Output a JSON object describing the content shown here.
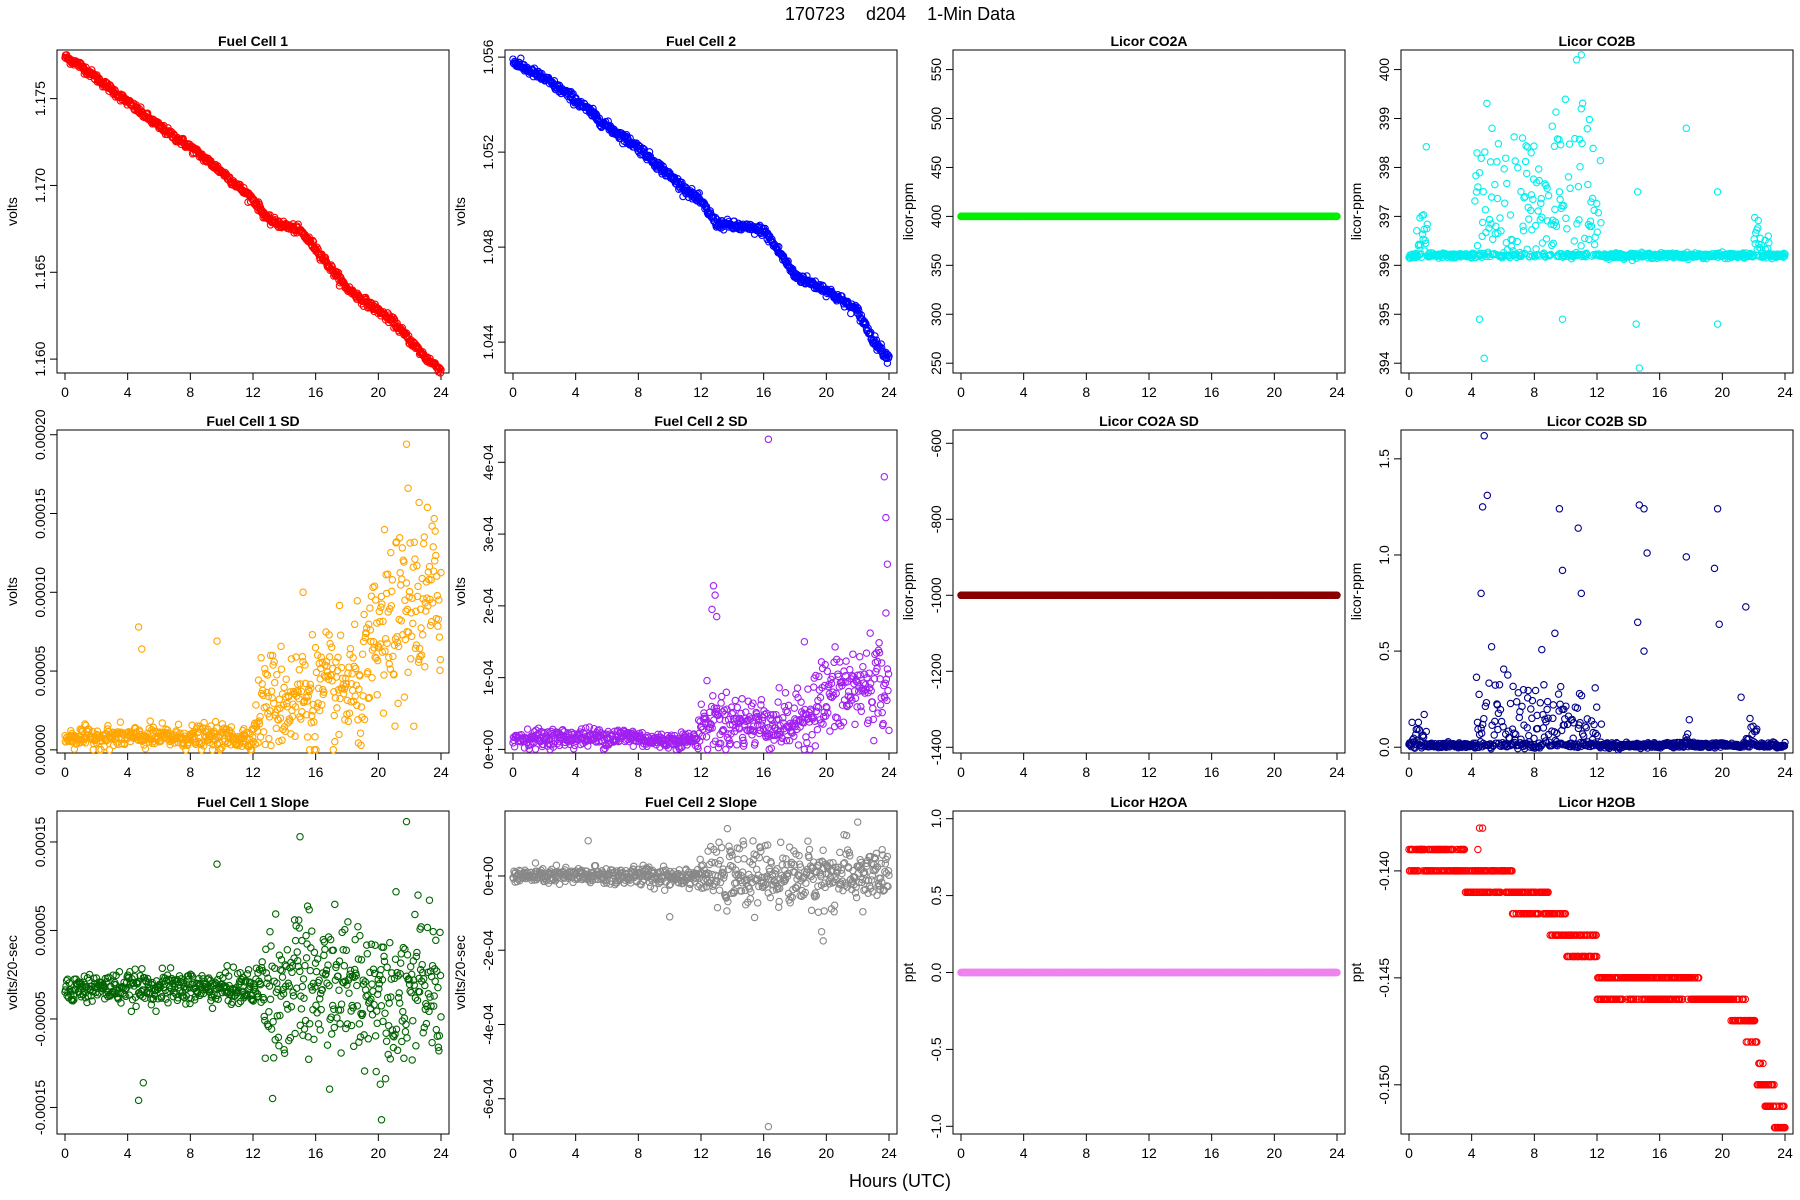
{
  "header": {
    "date": "170723",
    "station": "d204",
    "resolution": "1-Min Data"
  },
  "x_axis_label": "Hours (UTC)",
  "chart_data": [
    {
      "type": "scatter",
      "title": "Fuel Cell 1",
      "ylabel": "volts",
      "color": "#ff0000",
      "xlim": [
        0,
        24
      ],
      "ylim": [
        1.1592,
        1.1778
      ],
      "xticks": [
        0,
        4,
        8,
        12,
        16,
        20,
        24
      ],
      "xtick_labels": [
        "0",
        "4",
        "8",
        "12",
        "16",
        "20",
        "24"
      ],
      "yticks": [
        1.16,
        1.165,
        1.17,
        1.175
      ],
      "ytick_labels": [
        "1.160",
        "1.165",
        "1.170",
        "1.175"
      ],
      "series_shape": "trend",
      "noise": 0.00012,
      "trend": [
        [
          0,
          1.1774
        ],
        [
          1,
          1.1769
        ],
        [
          2,
          1.1762
        ],
        [
          3,
          1.1755
        ],
        [
          4,
          1.1748
        ],
        [
          6,
          1.1734
        ],
        [
          8,
          1.1722
        ],
        [
          10,
          1.1708
        ],
        [
          12,
          1.1692
        ],
        [
          13,
          1.168
        ],
        [
          14,
          1.1677
        ],
        [
          15,
          1.1674
        ],
        [
          16,
          1.1664
        ],
        [
          17,
          1.1652
        ],
        [
          18,
          1.1641
        ],
        [
          19,
          1.1634
        ],
        [
          20,
          1.1628
        ],
        [
          21,
          1.1621
        ],
        [
          22,
          1.1611
        ],
        [
          23,
          1.1601
        ],
        [
          24,
          1.1594
        ]
      ]
    },
    {
      "type": "scatter",
      "title": "Fuel Cell 2",
      "ylabel": "volts",
      "color": "#0000ff",
      "xlim": [
        0,
        24
      ],
      "ylim": [
        1.0427,
        1.0563
      ],
      "xticks": [
        0,
        4,
        8,
        12,
        16,
        20,
        24
      ],
      "xtick_labels": [
        "0",
        "4",
        "8",
        "12",
        "16",
        "20",
        "24"
      ],
      "yticks": [
        1.044,
        1.048,
        1.052,
        1.056
      ],
      "ytick_labels": [
        "1.044",
        "1.048",
        "1.052",
        "1.056"
      ],
      "series_shape": "trend",
      "noise": 0.0001,
      "trend": [
        [
          0,
          1.0558
        ],
        [
          2,
          1.0551
        ],
        [
          4,
          1.0542
        ],
        [
          6,
          1.0531
        ],
        [
          8,
          1.0522
        ],
        [
          10,
          1.051
        ],
        [
          12,
          1.0499
        ],
        [
          13,
          1.049
        ],
        [
          14,
          1.0489
        ],
        [
          16,
          1.0487
        ],
        [
          17,
          1.0478
        ],
        [
          18,
          1.0468
        ],
        [
          20,
          1.0462
        ],
        [
          22,
          1.0453
        ],
        [
          23,
          1.0441
        ],
        [
          24,
          1.0433
        ]
      ]
    },
    {
      "type": "scatter",
      "title": "Licor CO2A",
      "ylabel": "licor-ppm",
      "color": "#00ee00",
      "xlim": [
        0,
        24
      ],
      "ylim": [
        240,
        570
      ],
      "xticks": [
        0,
        4,
        8,
        12,
        16,
        20,
        24
      ],
      "xtick_labels": [
        "0",
        "4",
        "8",
        "12",
        "16",
        "20",
        "24"
      ],
      "yticks": [
        250,
        300,
        350,
        400,
        450,
        500,
        550
      ],
      "ytick_labels": [
        "250",
        "300",
        "350",
        "400",
        "450",
        "500",
        "550"
      ],
      "series_shape": "constant",
      "value": 400
    },
    {
      "type": "scatter",
      "title": "Licor CO2B",
      "ylabel": "licor-ppm",
      "color": "#00eeee",
      "xlim": [
        0,
        24
      ],
      "ylim": [
        393.8,
        400.4
      ],
      "xticks": [
        0,
        4,
        8,
        12,
        16,
        20,
        24
      ],
      "xtick_labels": [
        "0",
        "4",
        "8",
        "12",
        "16",
        "20",
        "24"
      ],
      "yticks": [
        394,
        395,
        396,
        397,
        398,
        399,
        400
      ],
      "ytick_labels": [
        "394",
        "395",
        "396",
        "397",
        "398",
        "399",
        "400"
      ],
      "series_shape": "baseline_spikes",
      "base": 396.2,
      "spikes": [
        [
          4.5,
          394.9
        ],
        [
          4.8,
          394.1
        ],
        [
          9.8,
          394.9
        ],
        [
          14.7,
          393.9
        ],
        [
          14.5,
          394.8
        ],
        [
          19.7,
          394.8
        ],
        [
          10.7,
          400.2
        ],
        [
          11.0,
          400.3
        ],
        [
          11.0,
          399.2
        ],
        [
          5.3,
          398.8
        ],
        [
          17.7,
          398.8
        ],
        [
          7.8,
          398.3
        ],
        [
          4.4,
          397.6
        ],
        [
          9.6,
          397.5
        ],
        [
          14.6,
          397.5
        ],
        [
          19.7,
          397.5
        ]
      ],
      "busy_windows": [
        [
          4.2,
          12.3,
          0.6
        ],
        [
          0.5,
          1.2,
          0.35
        ],
        [
          22.0,
          23.0,
          0.15
        ]
      ]
    },
    {
      "type": "scatter",
      "title": "Fuel Cell 1 SD",
      "ylabel": "volts",
      "color": "#ffa500",
      "xlim": [
        0,
        24
      ],
      "ylim": [
        -2e-06,
        0.000203
      ],
      "xticks": [
        0,
        4,
        8,
        12,
        16,
        20,
        24
      ],
      "xtick_labels": [
        "0",
        "4",
        "8",
        "12",
        "16",
        "20",
        "24"
      ],
      "yticks": [
        0,
        5e-05,
        0.0001,
        0.00015,
        0.0002
      ],
      "ytick_labels": [
        "0.00000",
        "0.00005",
        "0.00010",
        "0.00015",
        "0.00020"
      ],
      "series_shape": "sd_growth",
      "levels": [
        [
          0,
          8e-06,
          3e-06
        ],
        [
          12,
          8e-06,
          4e-06
        ],
        [
          12.5,
          3e-05,
          1.5e-05
        ],
        [
          19,
          4e-05,
          2e-05
        ],
        [
          20,
          7e-05,
          2.5e-05
        ],
        [
          24,
          0.0001,
          3e-05
        ]
      ],
      "spikes": [
        [
          4.7,
          7.8e-05
        ],
        [
          4.9,
          6.4e-05
        ],
        [
          9.7,
          6.9e-05
        ],
        [
          21.8,
          0.000194
        ],
        [
          22.6,
          0.000157
        ],
        [
          21.9,
          0.000166
        ],
        [
          15.2,
          0.0001
        ]
      ]
    },
    {
      "type": "scatter",
      "title": "Fuel Cell 2 SD",
      "ylabel": "volts",
      "color": "#a020f0",
      "xlim": [
        0,
        24
      ],
      "ylim": [
        -5e-06,
        0.000445
      ],
      "xticks": [
        0,
        4,
        8,
        12,
        16,
        20,
        24
      ],
      "xtick_labels": [
        "0",
        "4",
        "8",
        "12",
        "16",
        "20",
        "24"
      ],
      "yticks": [
        0,
        0.0001,
        0.0002,
        0.0003,
        0.0004
      ],
      "ytick_labels": [
        "0e+00",
        "1e-04",
        "2e-04",
        "3e-04",
        "4e-04"
      ],
      "series_shape": "sd_growth",
      "levels": [
        [
          0,
          1.5e-05,
          6e-06
        ],
        [
          7.5,
          1.8e-05,
          7e-06
        ],
        [
          9,
          1.2e-05,
          5e-06
        ],
        [
          11.8,
          1.4e-05,
          6e-06
        ],
        [
          12,
          4e-05,
          2e-05
        ],
        [
          18,
          3.5e-05,
          1.8e-05
        ],
        [
          19.8,
          7e-05,
          3e-05
        ],
        [
          24,
          0.0001,
          3.5e-05
        ]
      ],
      "spikes": [
        [
          16.3,
          0.000432
        ],
        [
          23.7,
          0.00038
        ],
        [
          23.8,
          0.000323
        ],
        [
          23.9,
          0.000258
        ],
        [
          12.8,
          0.000228
        ],
        [
          12.9,
          0.000215
        ],
        [
          12.7,
          0.000195
        ],
        [
          13.0,
          0.000185
        ],
        [
          18.6,
          0.00015
        ]
      ]
    },
    {
      "type": "scatter",
      "title": "Licor CO2A SD",
      "ylabel": "licor-ppm",
      "color": "#8b0000",
      "xlim": [
        0,
        24
      ],
      "ylim": [
        -1415,
        -565
      ],
      "xticks": [
        0,
        4,
        8,
        12,
        16,
        20,
        24
      ],
      "xtick_labels": [
        "0",
        "4",
        "8",
        "12",
        "16",
        "20",
        "24"
      ],
      "yticks": [
        -1400,
        -1200,
        -1000,
        -800,
        -600
      ],
      "ytick_labels": [
        "-1400",
        "-1200",
        "-1000",
        "-800",
        "-600"
      ],
      "series_shape": "constant",
      "value": -1000
    },
    {
      "type": "scatter",
      "title": "Licor CO2B SD",
      "ylabel": "licor-ppm",
      "color": "#00008b",
      "xlim": [
        0,
        24
      ],
      "ylim": [
        -0.03,
        1.65
      ],
      "xticks": [
        0,
        4,
        8,
        12,
        16,
        20,
        24
      ],
      "xtick_labels": [
        "0",
        "4",
        "8",
        "12",
        "16",
        "20",
        "24"
      ],
      "yticks": [
        0,
        0.5,
        1.0,
        1.5
      ],
      "ytick_labels": [
        "0.0",
        "0.5",
        "1.0",
        "1.5"
      ],
      "series_shape": "baseline_spikes",
      "base": 0.01,
      "spikes": [
        [
          4.8,
          1.62
        ],
        [
          5.0,
          1.31
        ],
        [
          4.7,
          1.25
        ],
        [
          9.6,
          1.24
        ],
        [
          10.8,
          1.14
        ],
        [
          14.7,
          1.26
        ],
        [
          15.0,
          1.24
        ],
        [
          19.7,
          1.24
        ],
        [
          15.2,
          1.01
        ],
        [
          17.7,
          0.99
        ],
        [
          19.5,
          0.93
        ],
        [
          19.8,
          0.64
        ],
        [
          21.5,
          0.73
        ],
        [
          4.6,
          0.8
        ],
        [
          11.0,
          0.8
        ],
        [
          9.8,
          0.92
        ],
        [
          14.6,
          0.65
        ],
        [
          15.0,
          0.5
        ],
        [
          21.2,
          0.26
        ]
      ],
      "busy_windows": [
        [
          4.2,
          12.3,
          0.3
        ],
        [
          0.2,
          1.2,
          0.15
        ],
        [
          17.6,
          18.0,
          0.15
        ],
        [
          21.5,
          22.2,
          0.1
        ]
      ]
    },
    {
      "type": "scatter",
      "title": "Fuel Cell 1 Slope",
      "ylabel": "volts/20-sec",
      "color": "#006400",
      "xlim": [
        0,
        24
      ],
      "ylim": [
        -0.00018,
        0.000185
      ],
      "xticks": [
        0,
        4,
        8,
        12,
        16,
        20,
        24
      ],
      "xtick_labels": [
        "0",
        "4",
        "8",
        "12",
        "16",
        "20",
        "24"
      ],
      "yticks": [
        -0.00015,
        -5e-05,
        5e-05,
        0.00015
      ],
      "ytick_labels": [
        "-0.00015",
        "-0.00005",
        "0.00005",
        "0.00015"
      ],
      "series_shape": "noise_growth",
      "base": -1.5e-05,
      "levels": [
        [
          0,
          8e-06
        ],
        [
          12,
          1e-05
        ],
        [
          13,
          4e-05
        ],
        [
          24,
          4e-05
        ]
      ],
      "spikes": [
        [
          4.7,
          -0.000142
        ],
        [
          5.0,
          -0.000122
        ],
        [
          21.8,
          0.000173
        ],
        [
          15.0,
          0.000156
        ],
        [
          9.7,
          0.000125
        ],
        [
          20.2,
          -0.000164
        ]
      ]
    },
    {
      "type": "scatter",
      "title": "Fuel Cell 2 Slope",
      "ylabel": "volts/20-sec",
      "color": "#888888",
      "xlim": [
        0,
        24
      ],
      "ylim": [
        -0.000695,
        0.000175
      ],
      "xticks": [
        0,
        4,
        8,
        12,
        16,
        20,
        24
      ],
      "xtick_labels": [
        "0",
        "4",
        "8",
        "12",
        "16",
        "20",
        "24"
      ],
      "yticks": [
        -0.0006,
        -0.0004,
        -0.0002,
        0
      ],
      "ytick_labels": [
        "-6e-04",
        "-4e-04",
        "-2e-04",
        "0e+00"
      ],
      "series_shape": "noise_growth",
      "base": 0.0,
      "levels": [
        [
          0,
          1e-05
        ],
        [
          12,
          1.5e-05
        ],
        [
          13,
          4e-05
        ],
        [
          24,
          4e-05
        ]
      ],
      "spikes": [
        [
          16.3,
          -0.000675
        ],
        [
          22.0,
          0.000145
        ],
        [
          4.8,
          9.5e-05
        ],
        [
          19.8,
          -0.000175
        ],
        [
          19.7,
          -0.00015
        ],
        [
          10.0,
          -0.00011
        ]
      ]
    },
    {
      "type": "scatter",
      "title": "Licor H2OA",
      "ylabel": "ppt",
      "color": "#ee82ee",
      "xlim": [
        0,
        24
      ],
      "ylim": [
        -1.05,
        1.05
      ],
      "xticks": [
        0,
        4,
        8,
        12,
        16,
        20,
        24
      ],
      "xtick_labels": [
        "0",
        "4",
        "8",
        "12",
        "16",
        "20",
        "24"
      ],
      "yticks": [
        -1.0,
        -0.5,
        0.0,
        0.5,
        1.0
      ],
      "ytick_labels": [
        "-1.0",
        "-0.5",
        "0.0",
        "0.5",
        "1.0"
      ],
      "series_shape": "constant",
      "value": 0.0
    },
    {
      "type": "scatter",
      "title": "Licor H2OB",
      "ylabel": "ppt",
      "color": "#ff0000",
      "xlim": [
        0,
        24
      ],
      "ylim": [
        -0.1523,
        -0.1372
      ],
      "xticks": [
        0,
        4,
        8,
        12,
        16,
        20,
        24
      ],
      "xtick_labels": [
        "0",
        "4",
        "8",
        "12",
        "16",
        "20",
        "24"
      ],
      "yticks": [
        -0.15,
        -0.145,
        -0.14
      ],
      "ytick_labels": [
        "-0.150",
        "-0.145",
        "-0.140"
      ],
      "series_shape": "steps",
      "steps": [
        [
          0,
          3.6,
          -0.139,
          -0.14
        ],
        [
          3.6,
          5.0,
          -0.14,
          -0.141
        ],
        [
          5.0,
          6.6,
          -0.141,
          -0.14
        ],
        [
          6.6,
          7.5,
          -0.141,
          -0.142
        ],
        [
          7.5,
          9.0,
          -0.142,
          -0.141
        ],
        [
          9.0,
          10.0,
          -0.142,
          -0.143
        ],
        [
          10.0,
          11.0,
          -0.143,
          -0.144
        ],
        [
          11.0,
          12.0,
          -0.144,
          -0.143
        ],
        [
          12.0,
          13.0,
          -0.145,
          -0.146
        ],
        [
          13.0,
          17.5,
          -0.145,
          -0.146
        ],
        [
          17.5,
          18.5,
          -0.146,
          -0.145
        ],
        [
          18.5,
          20.5,
          -0.146,
          -0.146
        ],
        [
          20.5,
          21.5,
          -0.147,
          -0.146
        ],
        [
          21.5,
          22.2,
          -0.147,
          -0.148
        ],
        [
          22.2,
          22.7,
          -0.149,
          -0.15
        ],
        [
          22.7,
          23.3,
          -0.15,
          -0.151
        ],
        [
          23.3,
          24.0,
          -0.151,
          -0.152
        ]
      ],
      "spikes": [
        [
          4.5,
          -0.138
        ],
        [
          4.7,
          -0.138
        ],
        [
          4.4,
          -0.139
        ],
        [
          4.2,
          -0.14
        ],
        [
          4.8,
          -0.14
        ]
      ]
    }
  ]
}
